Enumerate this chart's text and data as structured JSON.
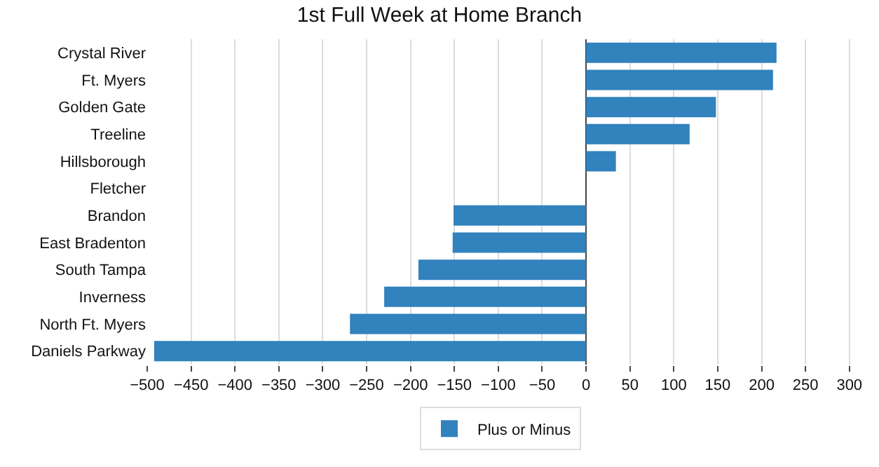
{
  "chart_data": {
    "type": "bar",
    "orientation": "horizontal",
    "title": "1st Full Week at Home Branch",
    "categories": [
      "Crystal River",
      "Ft. Myers",
      "Golden Gate",
      "Treeline",
      "Hillsborough",
      "Fletcher",
      "Brandon",
      "East Bradenton",
      "South Tampa",
      "Inverness",
      "North Ft. Myers",
      "Daniels Parkway"
    ],
    "series": [
      {
        "name": "Plus or Minus",
        "color": "#3182bd",
        "values": [
          217,
          213,
          148,
          118,
          34,
          0,
          -151,
          -152,
          -191,
          -230,
          -269,
          -492
        ]
      }
    ],
    "xlim": [
      -500,
      305
    ],
    "xticks": [
      -500,
      -450,
      -400,
      -350,
      -300,
      -250,
      -200,
      -150,
      -100,
      -50,
      0,
      50,
      100,
      150,
      200,
      250,
      300
    ],
    "grid": "x",
    "legend": "bottom"
  }
}
